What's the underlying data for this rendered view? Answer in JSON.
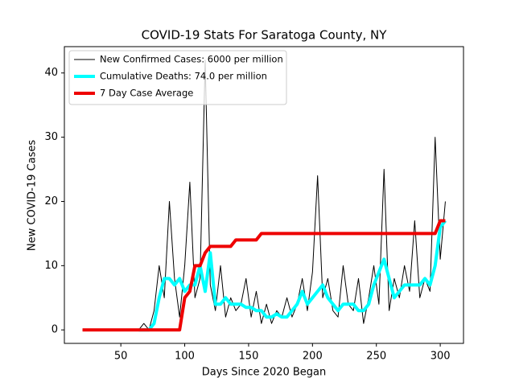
{
  "chart_data": {
    "type": "line",
    "title": "COVID-19 Stats For Saratoga County, NY",
    "x_label": "Days Since 2020 Began",
    "y_label": "New COVID-19 Cases",
    "x": [
      20,
      24,
      28,
      32,
      36,
      40,
      44,
      48,
      52,
      56,
      60,
      64,
      68,
      72,
      76,
      80,
      84,
      88,
      92,
      96,
      100,
      104,
      108,
      112,
      116,
      120,
      124,
      128,
      132,
      136,
      140,
      144,
      148,
      152,
      156,
      160,
      164,
      168,
      172,
      176,
      180,
      184,
      188,
      192,
      196,
      200,
      204,
      208,
      212,
      216,
      220,
      224,
      228,
      232,
      236,
      240,
      244,
      248,
      252,
      256,
      260,
      264,
      268,
      272,
      276,
      280,
      284,
      288,
      292,
      296,
      300,
      304
    ],
    "series": [
      {
        "name": "New Confirmed Cases: 6000 per million",
        "color": "#000000",
        "width": 1,
        "values": [
          0,
          0,
          0,
          0,
          0,
          0,
          0,
          0,
          0,
          0,
          0,
          0,
          1,
          0,
          3,
          10,
          5,
          20,
          8,
          2,
          10,
          23,
          5,
          8,
          42,
          7,
          3,
          10,
          2,
          5,
          3,
          4,
          8,
          2,
          6,
          1,
          4,
          1,
          3,
          2,
          5,
          2,
          4,
          8,
          3,
          9,
          24,
          5,
          8,
          3,
          2,
          10,
          4,
          3,
          8,
          1,
          5,
          10,
          4,
          25,
          3,
          8,
          5,
          10,
          6,
          17,
          5,
          8,
          6,
          30,
          11,
          20
        ]
      },
      {
        "name": "Cumulative Deaths: 74.0 per million",
        "color": "#00ffff",
        "width": 4,
        "values": [
          null,
          null,
          null,
          null,
          null,
          null,
          null,
          null,
          null,
          null,
          null,
          0,
          0,
          0,
          1,
          5,
          8,
          8,
          7,
          8,
          6,
          7,
          7,
          10,
          6,
          12,
          4,
          4,
          5,
          4,
          4,
          4,
          3.5,
          3.5,
          3,
          3,
          2,
          2,
          2.5,
          2,
          2,
          3,
          4,
          6,
          4,
          5,
          6,
          7,
          5,
          4,
          3,
          4,
          4,
          4,
          3,
          3,
          4,
          7,
          9,
          11,
          8,
          5,
          6,
          7,
          7,
          7,
          7,
          8,
          7,
          10,
          16,
          17
        ]
      },
      {
        "name": "7 Day Case Average",
        "color": "#ee0000",
        "width": 4,
        "values": [
          0,
          0,
          0,
          0,
          0,
          0,
          0,
          0,
          0,
          0,
          0,
          0,
          0,
          0,
          0,
          0,
          0,
          0,
          0,
          0,
          5,
          6,
          10,
          10,
          12,
          13,
          13,
          13,
          13,
          13,
          14,
          14,
          14,
          14,
          14,
          15,
          15,
          15,
          15,
          15,
          15,
          15,
          15,
          15,
          15,
          15,
          15,
          15,
          15,
          15,
          15,
          15,
          15,
          15,
          15,
          15,
          15,
          15,
          15,
          15,
          15,
          15,
          15,
          15,
          15,
          15,
          15,
          15,
          15,
          15,
          17,
          17
        ]
      }
    ],
    "xlim": [
      5.8,
      318.2
    ],
    "ylim": [
      -2.1,
      44.1
    ],
    "xticks": [
      50,
      100,
      150,
      200,
      250,
      300
    ],
    "yticks": [
      0,
      10,
      20,
      30,
      40
    ],
    "legend": "upper left",
    "grid": false
  }
}
